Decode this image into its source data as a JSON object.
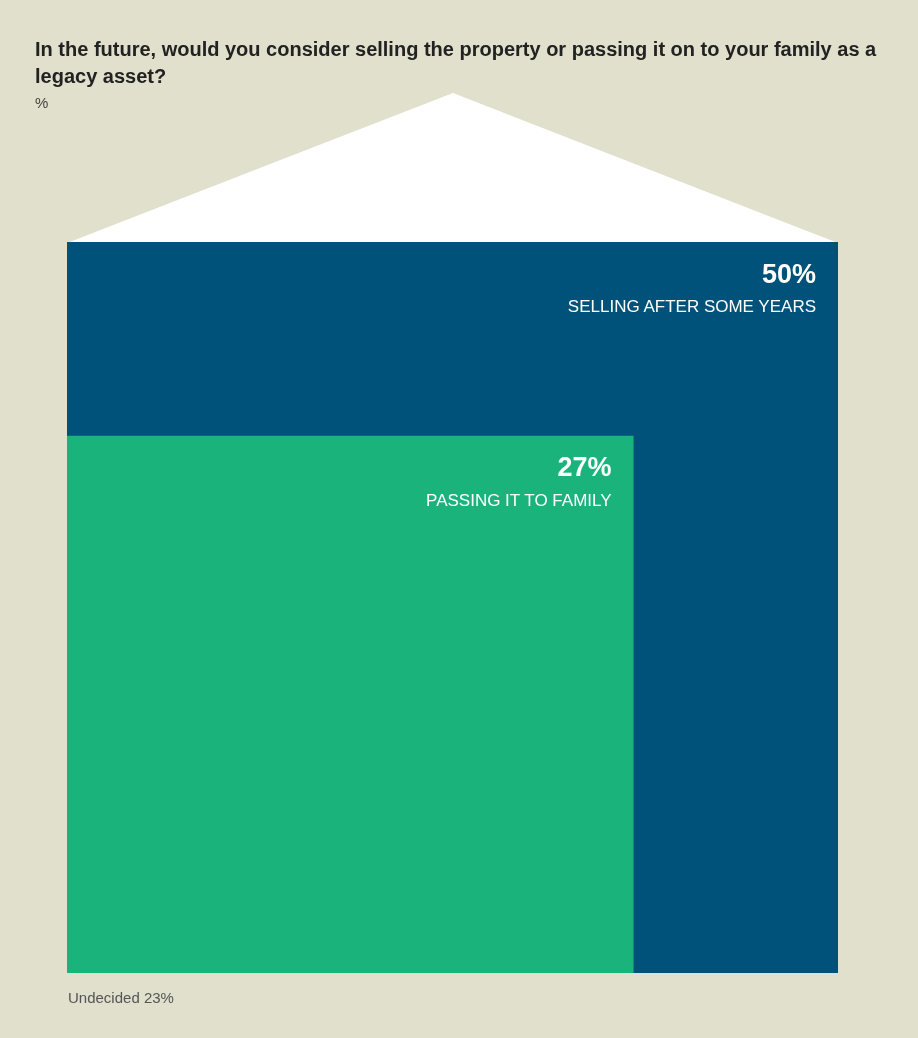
{
  "chart_data": {
    "type": "other",
    "title": "In the future, would you consider selling the property or passing it on to your family as a legacy asset?",
    "subtitle": "%",
    "categories": [
      "SELLING AFTER SOME YEARS",
      "PASSING IT TO FAMILY"
    ],
    "values": [
      50,
      27
    ],
    "value_labels": [
      "50%",
      "27%"
    ],
    "colors": [
      "#00527a",
      "#1ab37c"
    ],
    "annotations": [
      "Undecided 23%"
    ]
  }
}
